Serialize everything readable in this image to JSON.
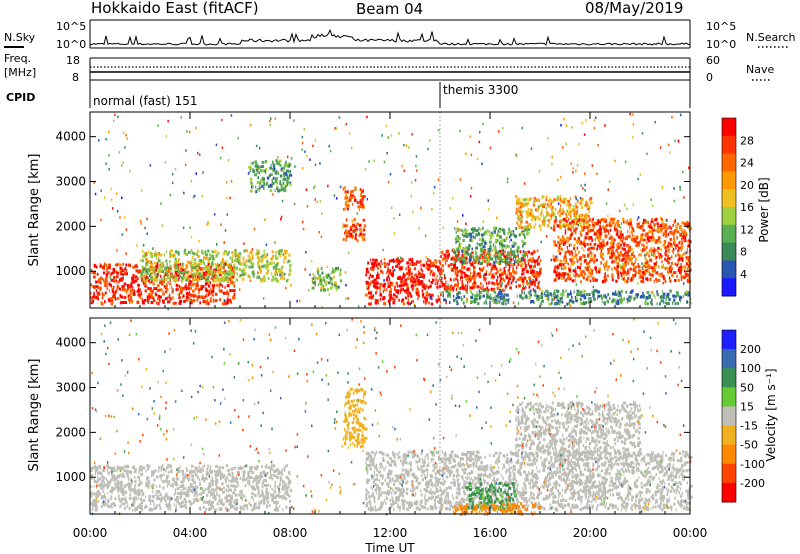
{
  "header": {
    "title": "Hokkaido East (fitACF)",
    "beam": "Beam 04",
    "date": "08/May/2019"
  },
  "strip_noise": {
    "left_label": "N.Sky",
    "right_label": "N.Search",
    "left_ticks": [
      "10^5",
      "10^0"
    ],
    "right_ticks": [
      "10^5",
      "10^0"
    ]
  },
  "strip_freq": {
    "left_label_1": "Freq.",
    "left_label_2": "[MHz]",
    "right_label": "Nave",
    "left_ticks": [
      "18",
      "8"
    ],
    "right_ticks": [
      "60",
      "0"
    ]
  },
  "cpid": {
    "label": "CPID",
    "mode_1": "normal (fast) 151",
    "mode_2": "themis 3300"
  },
  "colors": {
    "power_scale": [
      "#1a1aff",
      "#2a55b0",
      "#3a8a5a",
      "#5ab050",
      "#a0d040",
      "#f0c020",
      "#ff9900",
      "#ff6600",
      "#ff3300",
      "#ff0000"
    ],
    "velocity_scale": [
      "#2020ff",
      "#3a6ab0",
      "#3a9050",
      "#66cc33",
      "#c0c0b8",
      "#f0b020",
      "#ff8800",
      "#ff4400",
      "#ff0000"
    ],
    "ground_scatter": "#bebeb6"
  },
  "chart_data": [
    {
      "type": "heatmap",
      "title": "",
      "xlabel": "",
      "ylabel": "Slant Range [km]",
      "x_ticks": [],
      "y_ticks": [
        "1000",
        "2000",
        "3000",
        "4000"
      ],
      "xlim_hours": [
        0,
        24
      ],
      "ylim_km": [
        180,
        4550
      ],
      "colorbar": {
        "label": "Power [dB]",
        "ticks": [
          "28",
          "24",
          "20",
          "16",
          "12",
          "8",
          "4"
        ]
      },
      "features": [
        {
          "x_hours": [
            0.0,
            5.8
          ],
          "range_km": [
            300,
            1200
          ],
          "value_db": 28
        },
        {
          "x_hours": [
            2.0,
            8.0
          ],
          "range_km": [
            800,
            1500
          ],
          "value_db": 16
        },
        {
          "x_hours": [
            6.3,
            8.0
          ],
          "range_km": [
            2800,
            3500
          ],
          "value_db": 12
        },
        {
          "x_hours": [
            8.8,
            10.0
          ],
          "range_km": [
            600,
            1100
          ],
          "value_db": 14
        },
        {
          "x_hours": [
            10.1,
            11.0
          ],
          "range_km": [
            2400,
            2900
          ],
          "value_db": 26
        },
        {
          "x_hours": [
            10.1,
            11.0
          ],
          "range_km": [
            1700,
            2200
          ],
          "value_db": 26
        },
        {
          "x_hours": [
            11.0,
            14.0
          ],
          "range_km": [
            300,
            1300
          ],
          "value_db": 30
        },
        {
          "x_hours": [
            14.0,
            18.0
          ],
          "range_km": [
            600,
            1500
          ],
          "value_db": 28
        },
        {
          "x_hours": [
            14.5,
            17.5
          ],
          "range_km": [
            1200,
            2000
          ],
          "value_db": 12
        },
        {
          "x_hours": [
            17.0,
            20.0
          ],
          "range_km": [
            2000,
            2700
          ],
          "value_db": 20
        },
        {
          "x_hours": [
            18.5,
            24.0
          ],
          "range_km": [
            800,
            2200
          ],
          "value_db": 26
        },
        {
          "x_hours": [
            14.0,
            24.0
          ],
          "range_km": [
            300,
            600
          ],
          "value_db": 10
        }
      ]
    },
    {
      "type": "heatmap",
      "title": "",
      "xlabel": "Time UT",
      "ylabel": "Slant Range [km]",
      "x_ticks": [
        "00:00",
        "04:00",
        "08:00",
        "12:00",
        "16:00",
        "20:00",
        "00:00"
      ],
      "y_ticks": [
        "1000",
        "2000",
        "3000",
        "4000"
      ],
      "xlim_hours": [
        0,
        24
      ],
      "ylim_km": [
        180,
        4550
      ],
      "colorbar": {
        "label": "Velocity [m s⁻¹]",
        "ticks": [
          "200",
          "100",
          "50",
          "15",
          "-15",
          "-50",
          "-100",
          "-200"
        ]
      },
      "features": [
        {
          "x_hours": [
            0.0,
            8.0
          ],
          "range_km": [
            300,
            1300
          ],
          "value_ms": 0
        },
        {
          "x_hours": [
            11.0,
            24.0
          ],
          "range_km": [
            300,
            1600
          ],
          "value_ms": 0
        },
        {
          "x_hours": [
            17.0,
            22.0
          ],
          "range_km": [
            1500,
            2700
          ],
          "value_ms": 0
        },
        {
          "x_hours": [
            15.0,
            17.0
          ],
          "range_km": [
            300,
            900
          ],
          "value_ms": 60
        },
        {
          "x_hours": [
            14.5,
            18.0
          ],
          "range_km": [
            200,
            450
          ],
          "value_ms": -60
        },
        {
          "x_hours": [
            10.1,
            11.0
          ],
          "range_km": [
            1700,
            3000
          ],
          "value_ms": -30
        }
      ]
    }
  ]
}
